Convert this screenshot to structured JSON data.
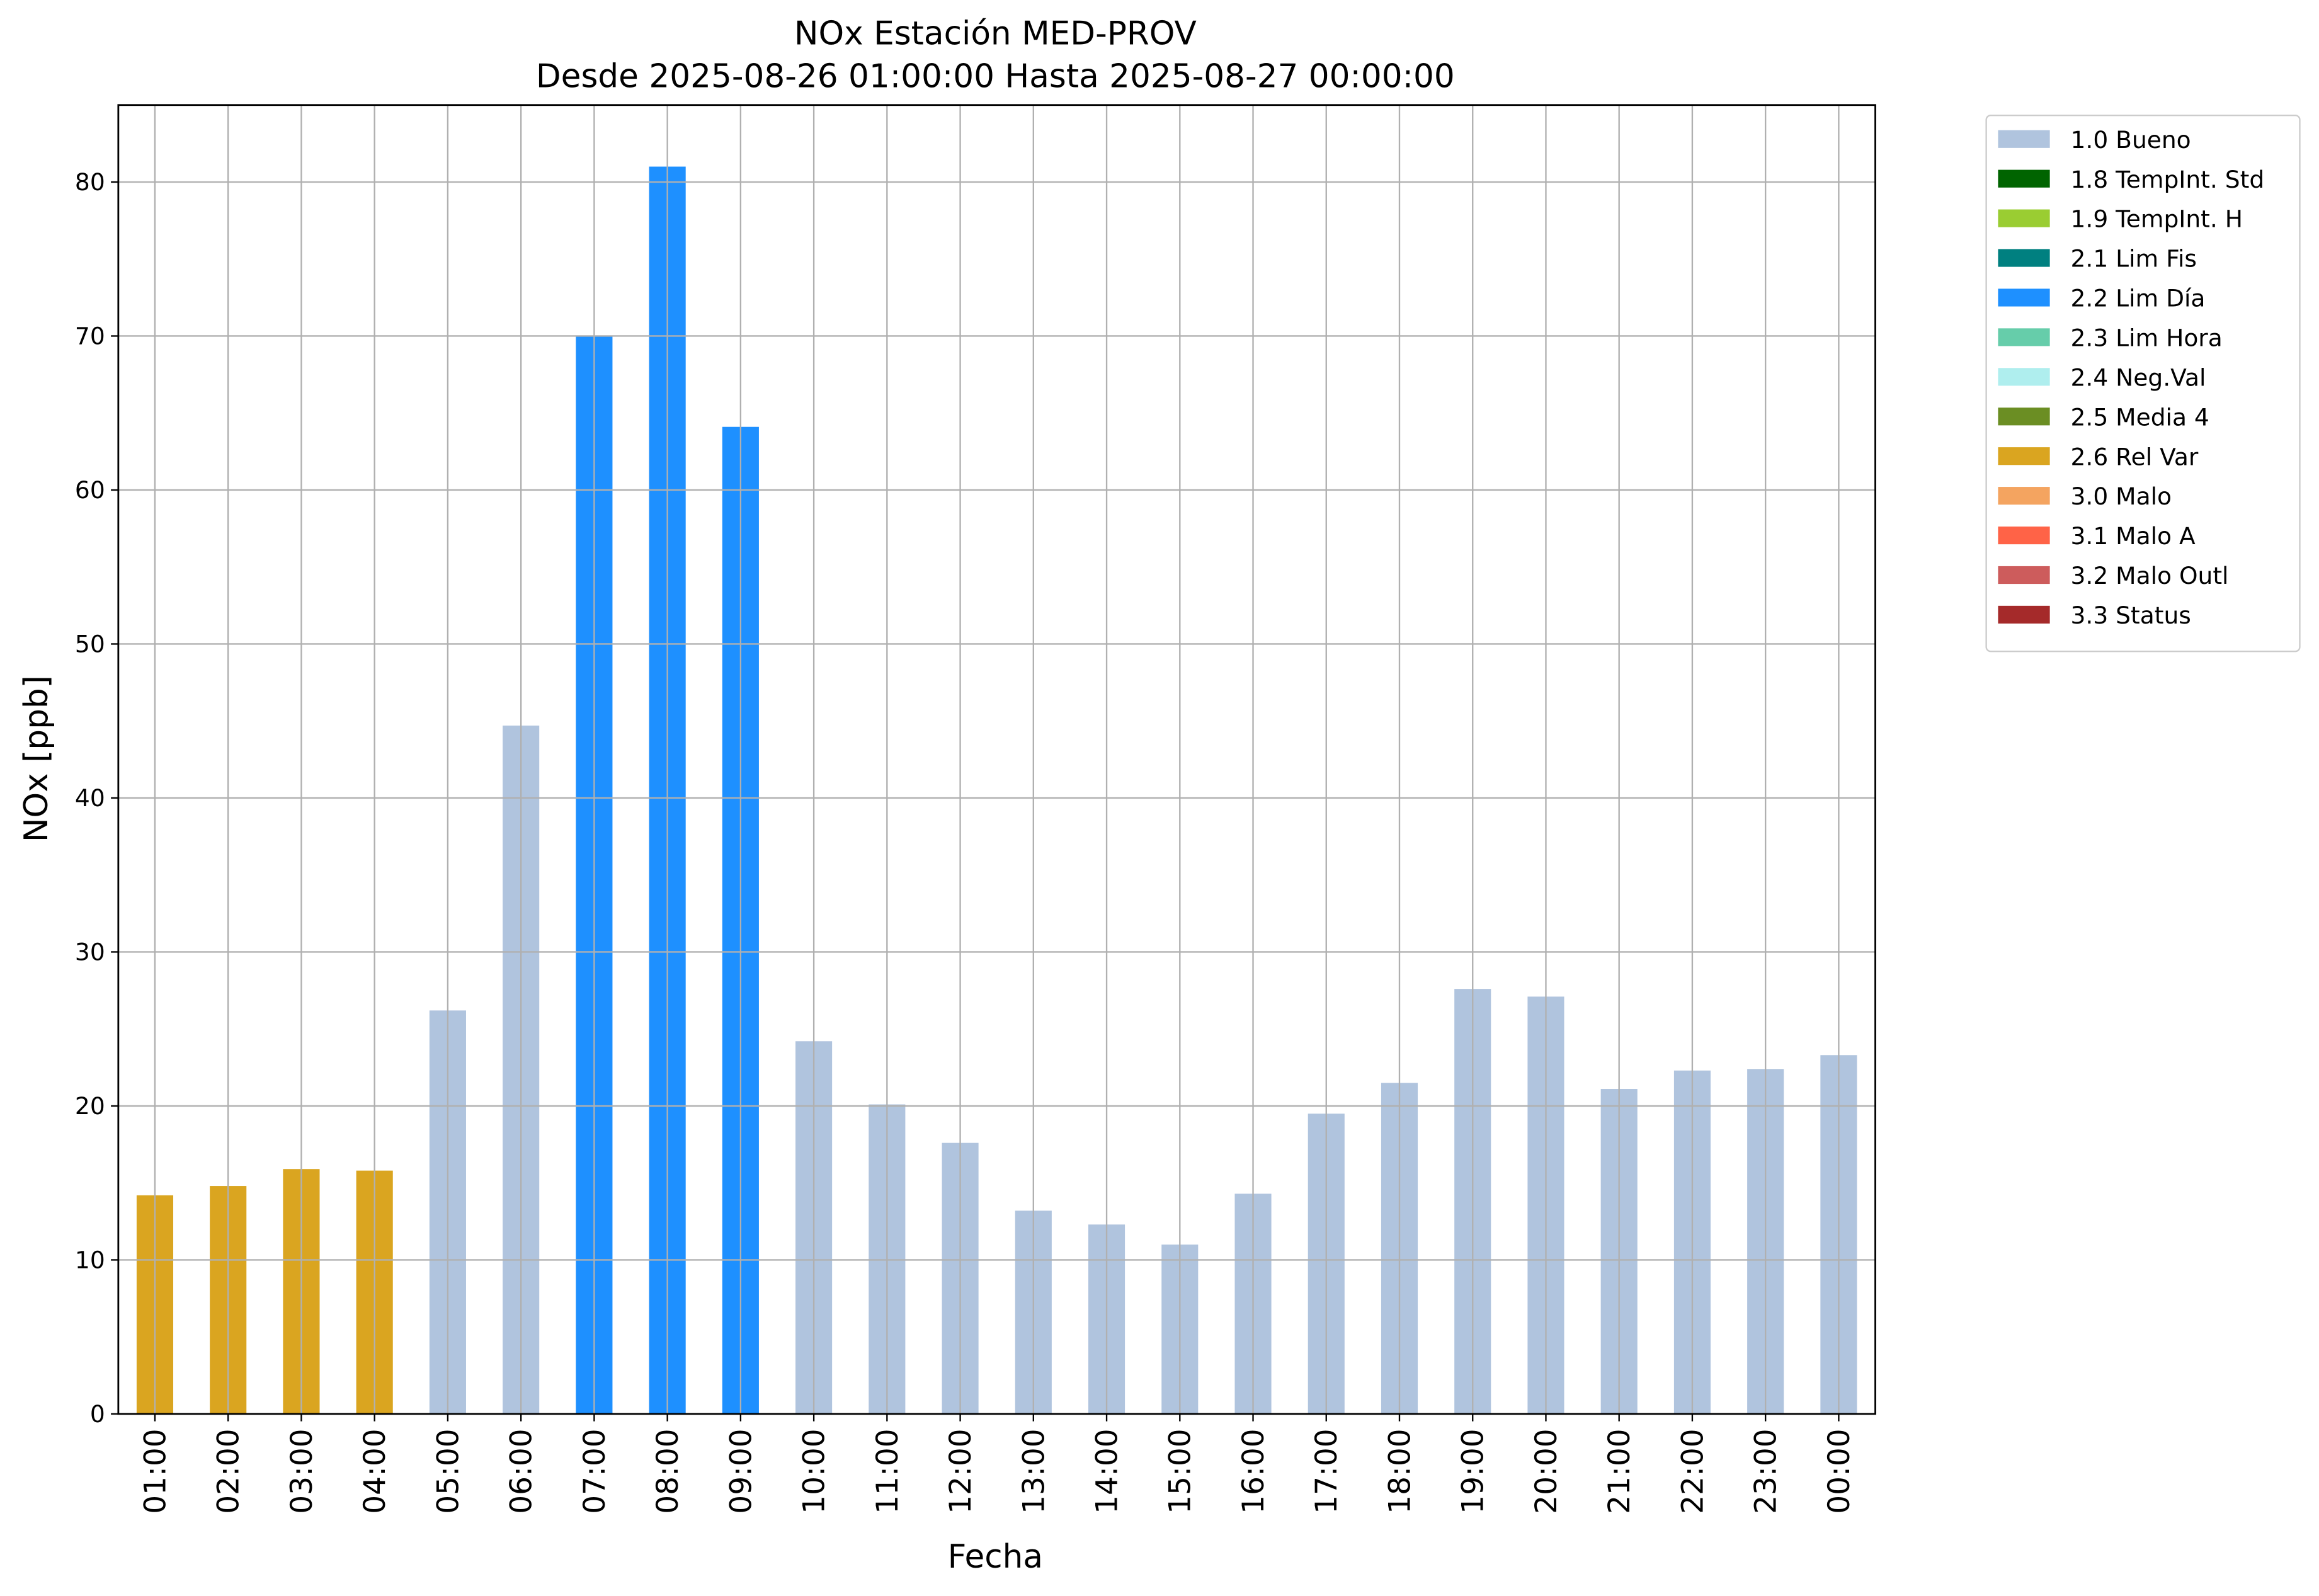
{
  "chart_data": {
    "type": "stacked_bar",
    "title": "NOx Estación MED-PROV",
    "subtitle": "Desde 2025-08-26 01:00:00 Hasta 2025-08-27 00:00:00",
    "x_label": "Fecha",
    "y_label": "NOx [ppb]",
    "categories": [
      "01:00",
      "02:00",
      "03:00",
      "04:00",
      "05:00",
      "06:00",
      "07:00",
      "08:00",
      "09:00",
      "10:00",
      "11:00",
      "12:00",
      "13:00",
      "14:00",
      "15:00",
      "16:00",
      "17:00",
      "18:00",
      "19:00",
      "20:00",
      "21:00",
      "22:00",
      "23:00",
      "00:00"
    ],
    "series": [
      {
        "name": "1.0 Bueno",
        "color": "#b0c4de",
        "values": [
          null,
          null,
          null,
          null,
          26.2,
          44.7,
          null,
          null,
          null,
          24.2,
          20.1,
          17.6,
          13.2,
          12.3,
          11.0,
          14.3,
          19.5,
          21.5,
          27.6,
          27.1,
          21.1,
          22.3,
          22.4,
          23.3
        ]
      },
      {
        "name": "1.8 TempInt. Std",
        "color": "#006400",
        "values": [
          null,
          null,
          null,
          null,
          null,
          null,
          null,
          null,
          null,
          null,
          null,
          null,
          null,
          null,
          null,
          null,
          null,
          null,
          null,
          null,
          null,
          null,
          null,
          null
        ]
      },
      {
        "name": "1.9 TempInt. H",
        "color": "#9acd32",
        "values": [
          null,
          null,
          null,
          null,
          null,
          null,
          null,
          null,
          null,
          null,
          null,
          null,
          null,
          null,
          null,
          null,
          null,
          null,
          null,
          null,
          null,
          null,
          null,
          null
        ]
      },
      {
        "name": "2.1 Lim Fis",
        "color": "#008080",
        "values": [
          null,
          null,
          null,
          null,
          null,
          null,
          null,
          null,
          null,
          null,
          null,
          null,
          null,
          null,
          null,
          null,
          null,
          null,
          null,
          null,
          null,
          null,
          null,
          null
        ]
      },
      {
        "name": "2.2 Lim Día",
        "color": "#1e90ff",
        "values": [
          null,
          null,
          null,
          null,
          null,
          null,
          70.0,
          81.0,
          64.1,
          null,
          null,
          null,
          null,
          null,
          null,
          null,
          null,
          null,
          null,
          null,
          null,
          null,
          null,
          null
        ]
      },
      {
        "name": "2.3 Lim Hora",
        "color": "#66cdaa",
        "values": [
          null,
          null,
          null,
          null,
          null,
          null,
          null,
          null,
          null,
          null,
          null,
          null,
          null,
          null,
          null,
          null,
          null,
          null,
          null,
          null,
          null,
          null,
          null,
          null
        ]
      },
      {
        "name": "2.4 Neg.Val",
        "color": "#afeeee",
        "values": [
          null,
          null,
          null,
          null,
          null,
          null,
          null,
          null,
          null,
          null,
          null,
          null,
          null,
          null,
          null,
          null,
          null,
          null,
          null,
          null,
          null,
          null,
          null,
          null
        ]
      },
      {
        "name": "2.5 Media 4",
        "color": "#6b8e23",
        "values": [
          null,
          null,
          null,
          null,
          null,
          null,
          null,
          null,
          null,
          null,
          null,
          null,
          null,
          null,
          null,
          null,
          null,
          null,
          null,
          null,
          null,
          null,
          null,
          null
        ]
      },
      {
        "name": "2.6 Rel Var",
        "color": "#daa520",
        "values": [
          14.2,
          14.8,
          15.9,
          15.8,
          null,
          null,
          null,
          null,
          null,
          null,
          null,
          null,
          null,
          null,
          null,
          null,
          null,
          null,
          null,
          null,
          null,
          null,
          null,
          null
        ]
      },
      {
        "name": "3.0 Malo",
        "color": "#f4a460",
        "values": [
          null,
          null,
          null,
          null,
          null,
          null,
          null,
          null,
          null,
          null,
          null,
          null,
          null,
          null,
          null,
          null,
          null,
          null,
          null,
          null,
          null,
          null,
          null,
          null
        ]
      },
      {
        "name": "3.1 Malo A",
        "color": "#ff6347",
        "values": [
          null,
          null,
          null,
          null,
          null,
          null,
          null,
          null,
          null,
          null,
          null,
          null,
          null,
          null,
          null,
          null,
          null,
          null,
          null,
          null,
          null,
          null,
          null,
          null
        ]
      },
      {
        "name": "3.2 Malo Outl",
        "color": "#cd5c5c",
        "values": [
          null,
          null,
          null,
          null,
          null,
          null,
          null,
          null,
          null,
          null,
          null,
          null,
          null,
          null,
          null,
          null,
          null,
          null,
          null,
          null,
          null,
          null,
          null,
          null
        ]
      },
      {
        "name": "3.3 Status",
        "color": "#a52a2a",
        "values": [
          null,
          null,
          null,
          null,
          null,
          null,
          null,
          null,
          null,
          null,
          null,
          null,
          null,
          null,
          null,
          null,
          null,
          null,
          null,
          null,
          null,
          null,
          null,
          null
        ]
      }
    ],
    "ylim": [
      0,
      85
    ],
    "yticks": [
      0,
      10,
      20,
      30,
      40,
      50,
      60,
      70,
      80
    ],
    "grid": true,
    "legend": "outside-upper-right"
  }
}
